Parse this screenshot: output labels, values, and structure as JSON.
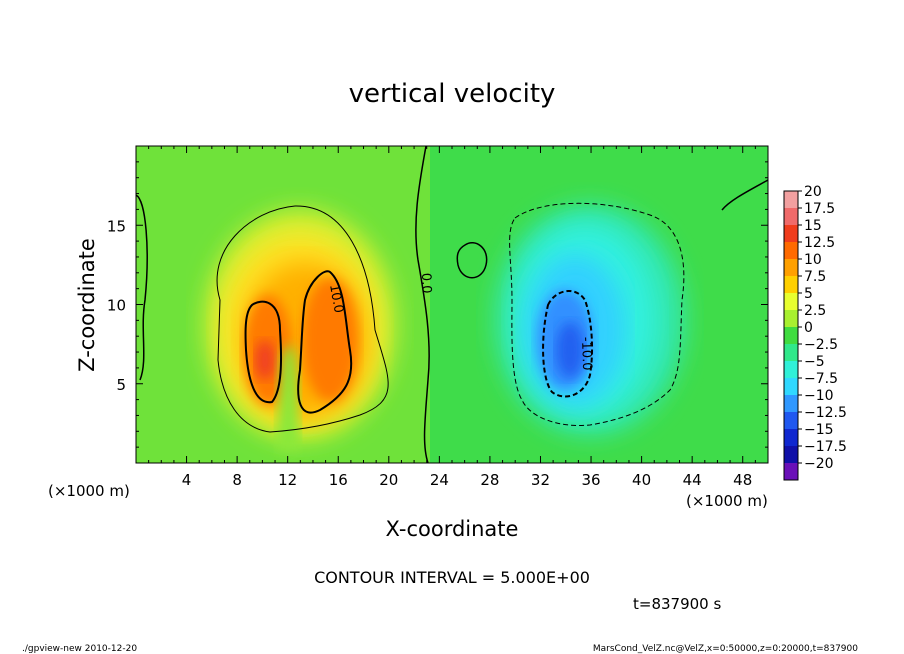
{
  "chart_data": {
    "type": "heatmap",
    "title": "vertical velocity",
    "xlabel": "X-coordinate",
    "ylabel": "Z-coordinate",
    "x_unit_left": "(×1000 m)",
    "x_unit_right": "(×1000 m)",
    "xlim": [
      0,
      50
    ],
    "ylim": [
      0,
      20
    ],
    "x_ticks": [
      "4",
      "8",
      "12",
      "16",
      "20",
      "24",
      "28",
      "32",
      "36",
      "40",
      "44",
      "48"
    ],
    "x_tick_values": [
      4,
      8,
      12,
      16,
      20,
      24,
      28,
      32,
      36,
      40,
      44,
      48
    ],
    "y_ticks": [
      "5",
      "10",
      "15"
    ],
    "y_tick_values": [
      5,
      10,
      15
    ],
    "colorbar": {
      "labels": [
        "20",
        "17.5",
        "15",
        "12.5",
        "10",
        "7.5",
        "5",
        "2.5",
        "0",
        "−2.5",
        "−5",
        "−7.5",
        "−10",
        "−12.5",
        "−15",
        "−17.5",
        "−20"
      ],
      "values": [
        20,
        17.5,
        15,
        12.5,
        10,
        7.5,
        5,
        2.5,
        0,
        -2.5,
        -5,
        -7.5,
        -10,
        -12.5,
        -15,
        -17.5,
        -20
      ],
      "colors": [
        "#f2a0a0",
        "#f06a6a",
        "#f03c1c",
        "#ff6a00",
        "#ffa000",
        "#ffd000",
        "#e8ff30",
        "#a8f030",
        "#40dc40",
        "#30e88a",
        "#30f0d8",
        "#30d8ff",
        "#3098ff",
        "#2058f0",
        "#1028d0",
        "#1010a8",
        "#6a10b8"
      ]
    },
    "features": [
      {
        "kind": "updraft",
        "x_range": [
          7,
          21
        ],
        "z_range": [
          1.5,
          17
        ],
        "peak": 15
      },
      {
        "kind": "downdraft",
        "x_range": [
          29,
          44
        ],
        "z_range": [
          2,
          17
        ],
        "peak": -12.5
      }
    ],
    "contour_labels": [
      "10.0",
      "0.0",
      "-10.0"
    ],
    "contour_interval_text": "CONTOUR INTERVAL = 5.000E+00",
    "time_text": "t=837900 s"
  },
  "footer": {
    "left": "./gpview-new  2010-12-20",
    "right": "MarsCond_VelZ.nc@VelZ,x=0:50000,z=0:20000,t=837900"
  }
}
